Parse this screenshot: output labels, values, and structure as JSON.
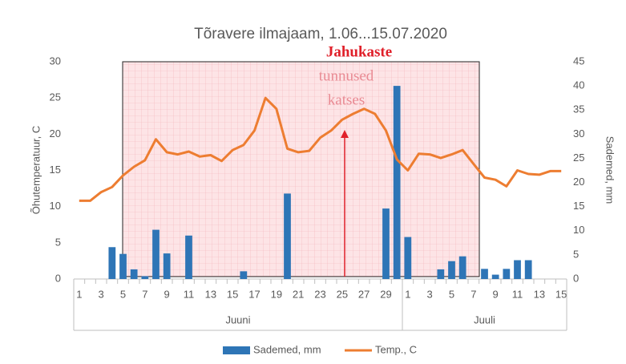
{
  "chart_data": {
    "type": "combo",
    "title": "Tõravere ilmajaam, 1.06...15.07.2020",
    "ylabel": "Õhutemperatuur, C",
    "y2label": "Sademed, mm",
    "categories": [
      "1",
      null,
      "3",
      null,
      "5",
      null,
      "7",
      null,
      "9",
      null,
      "11",
      null,
      "13",
      null,
      "15",
      null,
      "17",
      null,
      "19",
      null,
      "21",
      null,
      "23",
      null,
      "25",
      null,
      "27",
      null,
      "29",
      null,
      "1",
      null,
      "3",
      null,
      "5",
      null,
      "7",
      null,
      "9",
      null,
      "11",
      null,
      "13",
      null,
      "15"
    ],
    "groups": [
      "Juuni",
      "Juuli"
    ],
    "series": [
      {
        "name": "Sademed, mm",
        "type": "bar",
        "axis": "y2",
        "color": "#2e75b6",
        "values": [
          0,
          0,
          0,
          6.6,
          5.2,
          2,
          0.6,
          10.2,
          5.3,
          0,
          9,
          0,
          0,
          0,
          0,
          1.6,
          0,
          0,
          0,
          17.7,
          0,
          0,
          0,
          0,
          0,
          0,
          0,
          0,
          14.6,
          40,
          8.7,
          0,
          0,
          2,
          3.7,
          4.7,
          0,
          2.1,
          0.9,
          2.1,
          3.9,
          3.9,
          0,
          0,
          0
        ]
      },
      {
        "name": "Temp., C",
        "type": "line",
        "color": "#ed7d31",
        "values": [
          10.8,
          10.8,
          12,
          12.7,
          14.3,
          15.5,
          16.4,
          19.3,
          17.5,
          17.2,
          17.6,
          16.9,
          17.1,
          16.3,
          17.8,
          18.5,
          20.5,
          25,
          23.5,
          18,
          17.5,
          17.7,
          19.5,
          20.5,
          22,
          22.8,
          23.5,
          22.8,
          20.5,
          16.5,
          15,
          17.3,
          17.2,
          16.7,
          17.2,
          17.8,
          15.9,
          14,
          13.7,
          12.8,
          15,
          14.5,
          14.4,
          14.9,
          14.9
        ]
      }
    ],
    "ylim": [
      0,
      30
    ],
    "yticks": [
      0,
      5,
      10,
      15,
      20,
      25,
      30
    ],
    "y2lim": [
      0,
      45
    ],
    "y2ticks": [
      0,
      5,
      10,
      15,
      20,
      25,
      30,
      35,
      40,
      45
    ],
    "grid": false,
    "annotation": [
      "Jahukaste",
      "tunnused",
      "katses"
    ],
    "legend": "bottom"
  }
}
